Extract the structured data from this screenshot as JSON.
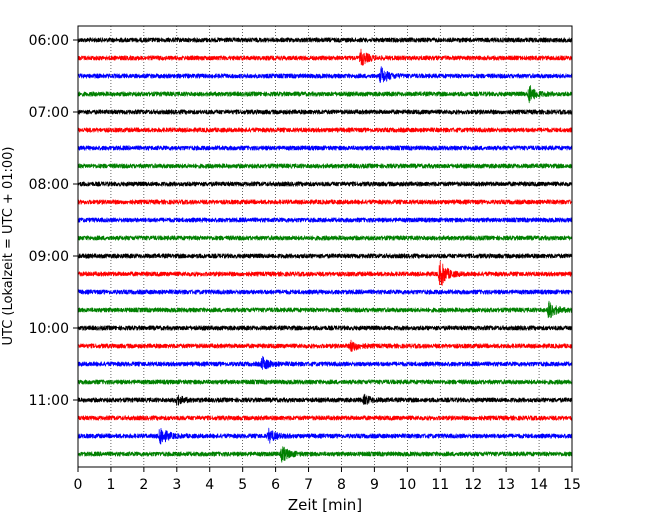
{
  "chart_data": {
    "type": "line",
    "title": "",
    "xlabel": "Zeit  [min]",
    "ylabel": "UTC (Lokalzeit = UTC + 01:00)",
    "xlim": [
      0,
      15
    ],
    "x_ticks": [
      0,
      1,
      2,
      3,
      4,
      5,
      6,
      7,
      8,
      9,
      10,
      11,
      12,
      13,
      14,
      15
    ],
    "start_time": "06:00",
    "row_minutes": 15,
    "y_ticks": [
      "06:00",
      "07:00",
      "08:00",
      "09:00",
      "10:00",
      "11:00"
    ],
    "grid": "vertical dotted at each minute",
    "colors": [
      "#000000",
      "#ff0000",
      "#0000ff",
      "#008000"
    ],
    "traces": [
      {
        "start": "06:00",
        "color": "#000000",
        "events": []
      },
      {
        "start": "06:15",
        "color": "#ff0000",
        "events": [
          {
            "minute": 8.6,
            "amp": 7
          }
        ]
      },
      {
        "start": "06:30",
        "color": "#0000ff",
        "events": [
          {
            "minute": 9.2,
            "amp": 8
          }
        ]
      },
      {
        "start": "06:45",
        "color": "#008000",
        "events": [
          {
            "minute": 13.7,
            "amp": 8
          }
        ]
      },
      {
        "start": "07:00",
        "color": "#000000",
        "events": []
      },
      {
        "start": "07:15",
        "color": "#ff0000",
        "events": []
      },
      {
        "start": "07:30",
        "color": "#0000ff",
        "events": []
      },
      {
        "start": "07:45",
        "color": "#008000",
        "events": []
      },
      {
        "start": "08:00",
        "color": "#000000",
        "events": []
      },
      {
        "start": "08:15",
        "color": "#ff0000",
        "events": []
      },
      {
        "start": "08:30",
        "color": "#0000ff",
        "events": []
      },
      {
        "start": "08:45",
        "color": "#008000",
        "events": []
      },
      {
        "start": "09:00",
        "color": "#000000",
        "events": []
      },
      {
        "start": "09:15",
        "color": "#ff0000",
        "events": [
          {
            "minute": 11.0,
            "amp": 13
          }
        ]
      },
      {
        "start": "09:30",
        "color": "#0000ff",
        "events": []
      },
      {
        "start": "09:45",
        "color": "#008000",
        "events": [
          {
            "minute": 14.3,
            "amp": 8
          }
        ]
      },
      {
        "start": "10:00",
        "color": "#000000",
        "events": []
      },
      {
        "start": "10:15",
        "color": "#ff0000",
        "events": [
          {
            "minute": 8.3,
            "amp": 5
          }
        ]
      },
      {
        "start": "10:30",
        "color": "#0000ff",
        "events": [
          {
            "minute": 5.6,
            "amp": 6
          }
        ]
      },
      {
        "start": "10:45",
        "color": "#008000",
        "events": []
      },
      {
        "start": "11:00",
        "color": "#000000",
        "events": [
          {
            "minute": 3.0,
            "amp": 4
          },
          {
            "minute": 8.7,
            "amp": 4
          }
        ]
      },
      {
        "start": "11:15",
        "color": "#ff0000",
        "events": []
      },
      {
        "start": "11:30",
        "color": "#0000ff",
        "events": [
          {
            "minute": 2.5,
            "amp": 9
          },
          {
            "minute": 5.8,
            "amp": 6
          }
        ]
      },
      {
        "start": "11:45",
        "color": "#008000",
        "events": [
          {
            "minute": 6.2,
            "amp": 7
          }
        ]
      }
    ]
  }
}
